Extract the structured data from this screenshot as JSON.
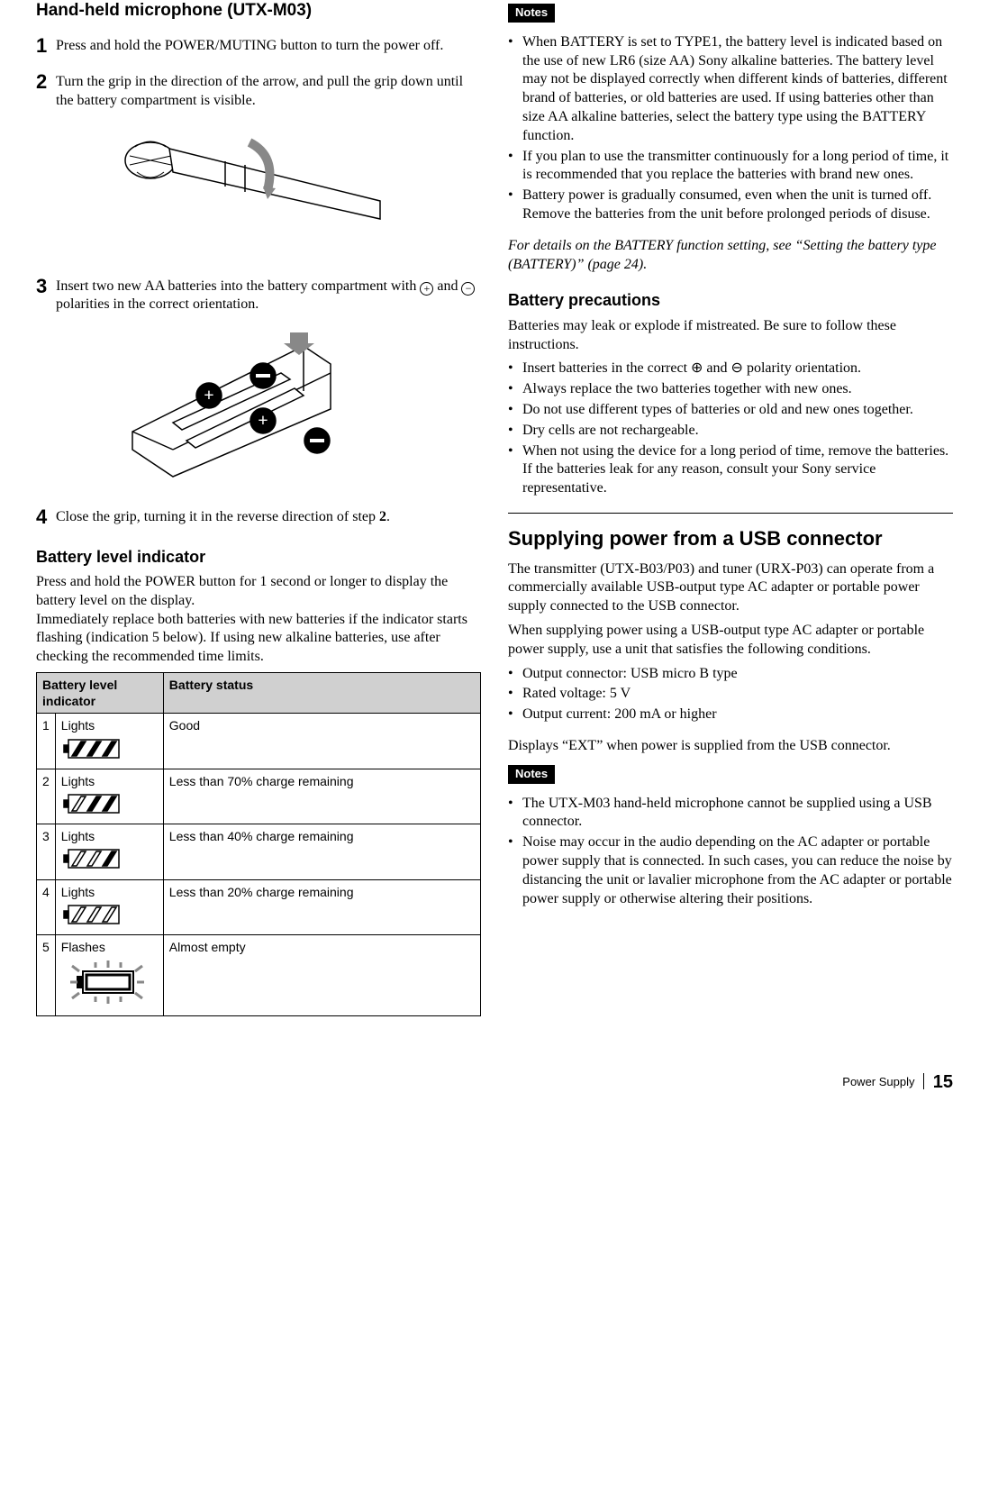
{
  "left": {
    "title": "Hand-held microphone (UTX-M03)",
    "step1": "Press and hold the POWER/MUTING button to turn the power off.",
    "step2": "Turn the grip in the direction of the arrow, and pull the grip down until the battery compartment is visible.",
    "step3_a": "Insert two new AA batteries into the battery compartment with ",
    "step3_b": " and ",
    "step3_c": " polarities in the correct orientation.",
    "step4_a": "Close the grip, turning it in the reverse direction of step ",
    "step4_b": "2",
    "step4_c": ".",
    "sub1": "Battery level indicator",
    "sub1_body": "Press and hold the POWER button for 1 second or longer to display the battery level on the display.\nImmediately replace both batteries with new batteries if the indicator starts flashing (indication 5 below). If using new alkaline batteries, use after checking the recommended time limits.",
    "table": {
      "col1": "Battery level indicator",
      "col2": "Battery status",
      "rows": [
        {
          "n": "1",
          "label": "Lights",
          "status": "Good",
          "fill": 3
        },
        {
          "n": "2",
          "label": "Lights",
          "status": "Less than 70% charge remaining",
          "fill": 2
        },
        {
          "n": "3",
          "label": "Lights",
          "status": "Less than 40% charge remaining",
          "fill": 1
        },
        {
          "n": "4",
          "label": "Lights",
          "status": "Less than 20% charge remaining",
          "fill": 0
        },
        {
          "n": "5",
          "label": "Flashes",
          "status": "Almost empty",
          "fill": -1
        }
      ]
    }
  },
  "right": {
    "notes1": [
      "When BATTERY is set to TYPE1, the battery level is indicated based on the use of new LR6 (size AA) Sony alkaline batteries. The battery level may not be displayed correctly when different kinds of batteries, different brand of batteries, or old batteries are used. If using batteries other than size AA alkaline batteries, select the battery type using the BATTERY function.",
      "If you plan to use the transmitter continuously for a long period of time, it is recommended that you replace the batteries with brand new ones.",
      "Battery power is gradually consumed, even when the unit is turned off. Remove the batteries from the unit before prolonged periods of disuse."
    ],
    "crossref": "For details on the BATTERY function setting, see “Setting the battery type (BATTERY)” (page 24).",
    "sub_precautions": "Battery precautions",
    "precautions_intro": "Batteries may leak or explode if mistreated. Be sure to follow these instructions.",
    "precautions": [
      "Insert batteries in the correct ⊕ and ⊖ polarity orientation.",
      "Always replace the two batteries together with new ones.",
      "Do not use different types of batteries or old and new ones together.",
      "Dry cells are not rechargeable.",
      "When not using the device for a long period of time, remove the batteries. If the batteries leak for any reason, consult your Sony service representative."
    ],
    "usb_title": "Supplying power from a USB connector",
    "usb_body1": "The transmitter (UTX-B03/P03) and tuner (URX-P03) can operate from a commercially available USB-output type AC adapter or portable power supply connected to the USB connector.",
    "usb_body2": "When supplying power using a USB-output type AC adapter or portable power supply, use a unit that satisfies the following conditions.",
    "usb_conditions": [
      "Output connector: USB micro B type",
      "Rated voltage: 5 V",
      "Output current: 200 mA or higher"
    ],
    "usb_ext": "Displays “EXT” when power is supplied from the USB connector.",
    "notes2": [
      "The UTX-M03 hand-held microphone cannot be supplied using a USB connector.",
      "Noise may occur in the audio depending on the AC adapter or portable power supply that is connected. In such cases, you can reduce the noise by distancing the unit or lavalier microphone from the AC adapter or portable power supply or otherwise altering their positions."
    ]
  },
  "footer": {
    "section": "Power Supply",
    "page": "15"
  },
  "labels": {
    "notes": "Notes"
  }
}
